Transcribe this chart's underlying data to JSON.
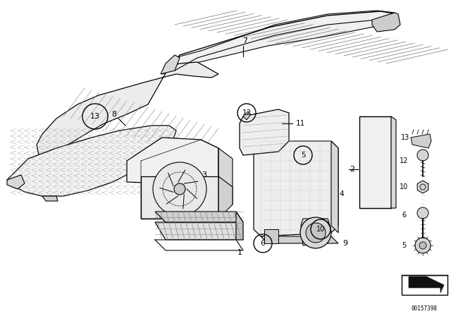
{
  "background_color": "#ffffff",
  "image_number": "00157398",
  "line_color": "#000000",
  "text_color": "#000000",
  "fig_width": 6.4,
  "fig_height": 4.48,
  "dpi": 100
}
